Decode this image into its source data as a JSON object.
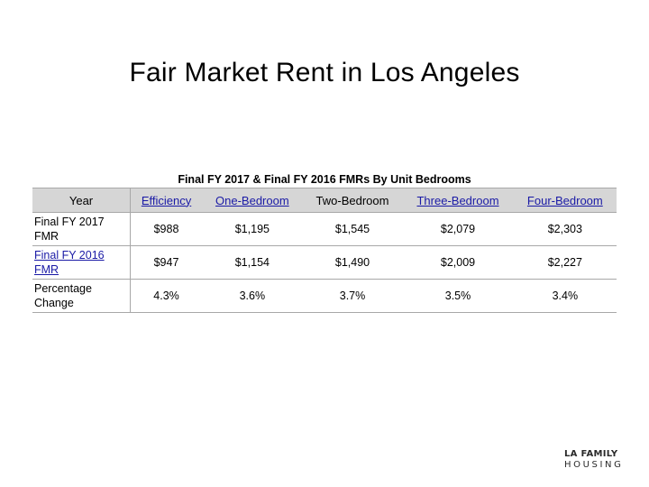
{
  "title": "Fair Market Rent in Los Angeles",
  "table": {
    "caption": "Final FY 2017 & Final FY 2016 FMRs By Unit Bedrooms",
    "headers": [
      "Year",
      "Efficiency",
      "One-Bedroom",
      "Two-Bedroom",
      "Three-Bedroom",
      "Four-Bedroom"
    ],
    "rows": [
      {
        "year": "Final FY 2017 FMR",
        "values": [
          "$988",
          "$1,195",
          "$1,545",
          "$2,079",
          "$2,303"
        ]
      },
      {
        "year": "Final FY 2016 FMR",
        "values": [
          "$947",
          "$1,154",
          "$1,490",
          "$2,009",
          "$2,227"
        ]
      },
      {
        "year": "Percentage Change",
        "values": [
          "4.3%",
          "3.6%",
          "3.7%",
          "3.5%",
          "3.4%"
        ]
      }
    ]
  },
  "logo": {
    "line1": "LA FAMILY",
    "line2": "HOUSING"
  },
  "colors": {
    "header_bg": "#d6d6d6",
    "link": "#1a1aa6",
    "rule": "#a8a8a8"
  }
}
